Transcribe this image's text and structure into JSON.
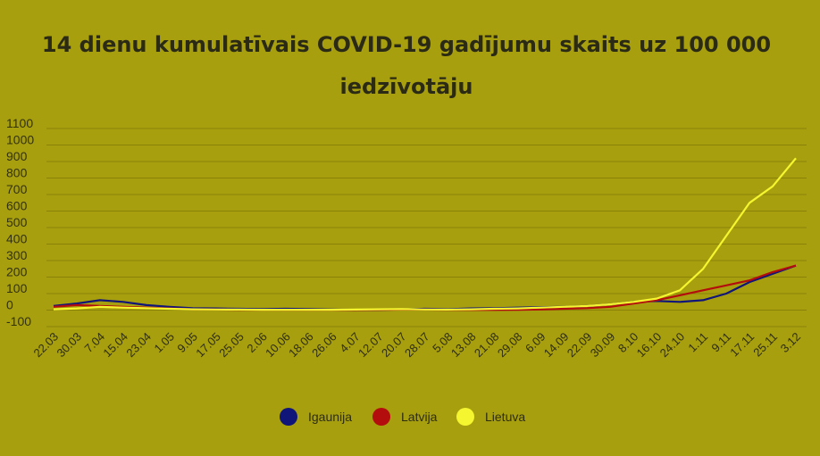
{
  "chart_data": {
    "type": "line",
    "title_line1": "14 dienu kumulatīvais COVID-19 gadījumu skaits uz 100 000",
    "title_line2": "iedzīvotāju",
    "ylim": [
      -100,
      1100
    ],
    "yticks": [
      "1100",
      "1000",
      "900",
      "800",
      "700",
      "600",
      "500",
      "400",
      "300",
      "200",
      "100",
      "0",
      "-100"
    ],
    "grid": true,
    "legend_position": "bottom",
    "x": [
      "22.03",
      "30.03",
      "7.04",
      "15.04",
      "23.04",
      "1.05",
      "9.05",
      "17.05",
      "25.05",
      "2.06",
      "10.06",
      "18.06",
      "26.06",
      "4.07",
      "12.07",
      "20.07",
      "28.07",
      "5.08",
      "13.08",
      "21.08",
      "29.08",
      "6.09",
      "14.09",
      "22.09",
      "30.09",
      "8.10",
      "16.10",
      "24.10",
      "1.11",
      "9.11",
      "17.11",
      "25.11",
      "3.12"
    ],
    "series": [
      {
        "name": "Igaunija",
        "color": "#10157a",
        "values": [
          25,
          40,
          60,
          50,
          30,
          20,
          12,
          10,
          8,
          6,
          8,
          6,
          3,
          2,
          2,
          4,
          8,
          6,
          10,
          12,
          15,
          18,
          20,
          25,
          35,
          50,
          55,
          50,
          60,
          100,
          170,
          220,
          270
        ]
      },
      {
        "name": "Latvija",
        "color": "#b30d0d",
        "values": [
          20,
          30,
          25,
          20,
          15,
          10,
          5,
          3,
          2,
          2,
          1,
          1,
          1,
          1,
          2,
          3,
          3,
          2,
          1,
          1,
          2,
          4,
          8,
          12,
          20,
          40,
          60,
          90,
          120,
          150,
          180,
          230,
          270
        ]
      },
      {
        "name": "Lietuva",
        "color": "#f5f530",
        "values": [
          5,
          10,
          20,
          15,
          12,
          8,
          5,
          4,
          3,
          2,
          2,
          2,
          2,
          3,
          5,
          6,
          4,
          3,
          5,
          8,
          10,
          15,
          20,
          25,
          35,
          50,
          70,
          120,
          250,
          450,
          650,
          750,
          920
        ]
      }
    ]
  }
}
